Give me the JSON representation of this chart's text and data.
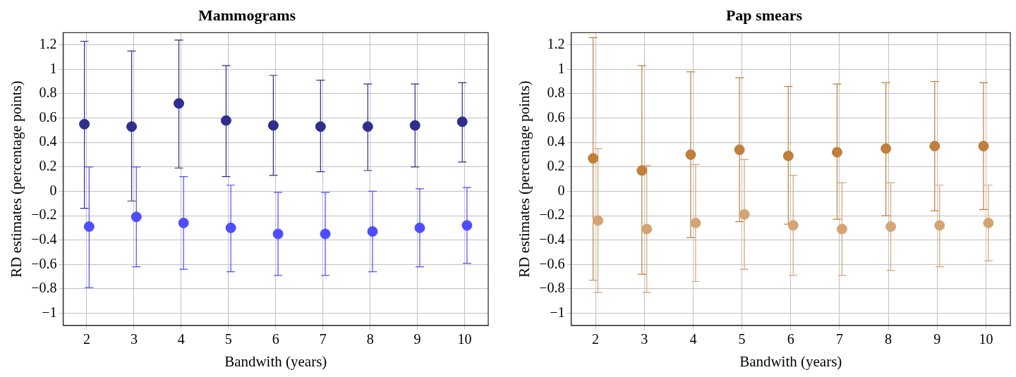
{
  "chart_data": [
    {
      "type": "scatter",
      "title": "Mammograms",
      "xlabel": "Bandwith (years)",
      "ylabel": "RD estimates (percentage points)",
      "xlim": [
        1.5,
        10.5
      ],
      "xticks": [
        2,
        3,
        4,
        5,
        6,
        7,
        8,
        9,
        10
      ],
      "ylim": [
        -1.1,
        1.3
      ],
      "yticks": [
        -1,
        -0.8,
        -0.6,
        -0.4,
        -0.2,
        0,
        0.2,
        0.4,
        0.6,
        0.8,
        1,
        1.2
      ],
      "grid": true,
      "marker": "circle",
      "series": [
        {
          "color": "#2e2e8f",
          "x": [
            1.95,
            2.95,
            3.95,
            4.95,
            5.95,
            6.95,
            7.95,
            8.95,
            9.95
          ],
          "values": [
            0.55,
            0.53,
            0.72,
            0.58,
            0.54,
            0.53,
            0.53,
            0.54,
            0.57
          ],
          "errors": [
            [
              -0.14,
              1.23
            ],
            [
              -0.08,
              1.15
            ],
            [
              0.19,
              1.24
            ],
            [
              0.12,
              1.03
            ],
            [
              0.13,
              0.95
            ],
            [
              0.16,
              0.91
            ],
            [
              0.17,
              0.88
            ],
            [
              0.2,
              0.88
            ],
            [
              0.24,
              0.89
            ]
          ]
        },
        {
          "color": "#4d4dff",
          "x": [
            2.05,
            3.05,
            4.05,
            5.05,
            6.05,
            7.05,
            8.05,
            9.05,
            10.05
          ],
          "values": [
            -0.29,
            -0.21,
            -0.26,
            -0.3,
            -0.35,
            -0.35,
            -0.33,
            -0.3,
            -0.28
          ],
          "errors": [
            [
              -0.79,
              0.2
            ],
            [
              -0.62,
              0.2
            ],
            [
              -0.64,
              0.12
            ],
            [
              -0.66,
              0.05
            ],
            [
              -0.69,
              -0.01
            ],
            [
              -0.69,
              -0.01
            ],
            [
              -0.66,
              0
            ],
            [
              -0.62,
              0.02
            ],
            [
              -0.59,
              0.03
            ]
          ]
        }
      ]
    },
    {
      "type": "scatter",
      "title": "Pap smears",
      "xlabel": "Bandwith (years)",
      "ylabel": "RD estimates (percentage points)",
      "xlim": [
        1.5,
        10.5
      ],
      "xticks": [
        2,
        3,
        4,
        5,
        6,
        7,
        8,
        9,
        10
      ],
      "ylim": [
        -1.1,
        1.3
      ],
      "yticks": [
        -1,
        -0.8,
        -0.6,
        -0.4,
        -0.2,
        0,
        0.2,
        0.4,
        0.6,
        0.8,
        1,
        1.2
      ],
      "grid": true,
      "marker": "circle",
      "series": [
        {
          "color": "#c07f3a",
          "x": [
            1.95,
            2.95,
            3.95,
            4.95,
            5.95,
            6.95,
            7.95,
            8.95,
            9.95
          ],
          "values": [
            0.27,
            0.17,
            0.3,
            0.34,
            0.29,
            0.32,
            0.35,
            0.37,
            0.37
          ],
          "errors": [
            [
              -0.73,
              1.26
            ],
            [
              -0.68,
              1.03
            ],
            [
              -0.38,
              0.98
            ],
            [
              -0.25,
              0.93
            ],
            [
              -0.27,
              0.86
            ],
            [
              -0.23,
              0.88
            ],
            [
              -0.2,
              0.89
            ],
            [
              -0.16,
              0.9
            ],
            [
              -0.15,
              0.89
            ]
          ]
        },
        {
          "color": "#d4a574",
          "x": [
            2.05,
            3.05,
            4.05,
            5.05,
            6.05,
            7.05,
            8.05,
            9.05,
            10.05
          ],
          "values": [
            -0.24,
            -0.31,
            -0.26,
            -0.19,
            -0.28,
            -0.31,
            -0.29,
            -0.28,
            -0.26
          ],
          "errors": [
            [
              -0.83,
              0.35
            ],
            [
              -0.83,
              0.21
            ],
            [
              -0.74,
              0.22
            ],
            [
              -0.64,
              0.26
            ],
            [
              -0.69,
              0.13
            ],
            [
              -0.69,
              0.07
            ],
            [
              -0.65,
              0.07
            ],
            [
              -0.62,
              0.05
            ],
            [
              -0.57,
              0.05
            ]
          ]
        }
      ]
    }
  ]
}
